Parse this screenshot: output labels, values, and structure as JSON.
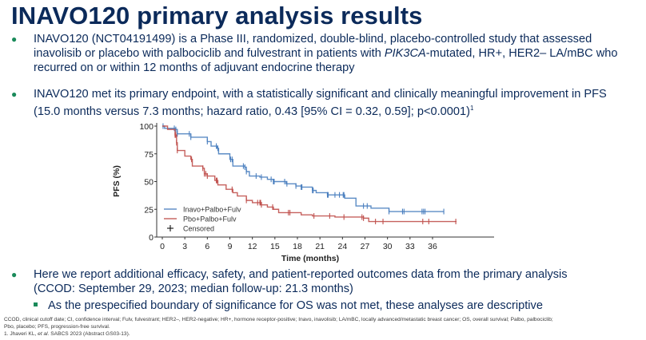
{
  "slide": {
    "title": "INAVO120 primary analysis results",
    "bullets": [
      {
        "lines": [
          {
            "parts": [
              {
                "text": "INAVO120 (NCT04191499) is a Phase III, randomized, double-blind, placebo-controlled study that assessed"
              }
            ]
          },
          {
            "parts": [
              {
                "text": "inavolisib or placebo with palbociclib and fulvestrant in patients with "
              },
              {
                "text": "PIK3CA",
                "italic": true
              },
              {
                "text": "-mutated, HR+, HER2– LA/mBC who"
              }
            ]
          },
          {
            "parts": [
              {
                "text": "recurred on or within 12 months of adjuvant endocrine therapy"
              }
            ]
          }
        ]
      },
      {
        "lines": [
          {
            "parts": [
              {
                "text": "INAVO120 met its primary endpoint, with a statistically significant and clinically meaningful improvement in PFS"
              }
            ]
          },
          {
            "parts": [
              {
                "text": "(15.0 months versus 7.3 months; hazard ratio, 0.43 [95% CI = 0.32, 0.59]; p<0.0001)"
              },
              {
                "text": "1",
                "sup": true
              }
            ]
          }
        ]
      },
      {
        "lines": [
          {
            "parts": [
              {
                "text": "Here we report additional efficacy, safety, and patient-reported outcomes data from the primary analysis"
              }
            ]
          },
          {
            "parts": [
              {
                "text": "(CCOD: September 29, 2023; median follow-up: 21.3 months)"
              }
            ]
          }
        ]
      }
    ],
    "sub_bullet": "As the prespecified boundary of significance for OS was not met, these analyses are descriptive",
    "footnotes": [
      "CCOD, clinical cutoff date; CI, confidence interval; Fulv, fulvestrant;  HER2–, HER2-negative; HR+, hormone receptor-positive; Inavo, inavolisib; LA/mBC, locally advanced/metastatic breast cancer; OS, overall survival; Palbo, palbociclib;",
      "Pbo, placebo; PFS, progression-free survival.",
      "1. Jhaveri KL, et al. SABCS 2023 (Abstract GS03-13)."
    ],
    "colors": {
      "title": "#0b2a5a",
      "bullet_marker": "#1a8a5a",
      "inavo": "#4a7fbf",
      "pbo": "#c0504d"
    }
  },
  "chart_data": {
    "type": "line",
    "subtype": "kaplan-meier step",
    "title": "",
    "xlabel": "Time (months)",
    "ylabel": "PFS (%)",
    "xlim": [
      -1.5,
      43
    ],
    "ylim": [
      0,
      100
    ],
    "xticks": [
      0,
      3,
      6,
      9,
      12,
      15,
      18,
      21,
      24,
      27,
      30,
      33,
      36
    ],
    "yticks": [
      0,
      25,
      50,
      75,
      100
    ],
    "grid": false,
    "legend": {
      "placement": "bottom-left",
      "entries": [
        "Inavo+Palbo+Fulv",
        "Pbo+Palbo+Fulv",
        "Censored"
      ]
    },
    "series": [
      {
        "name": "Inavo+Palbo+Fulv",
        "color": "#4a7fbf",
        "steps": [
          [
            0,
            100
          ],
          [
            0.3,
            98
          ],
          [
            1.8,
            97
          ],
          [
            2.0,
            93
          ],
          [
            3.8,
            90
          ],
          [
            6.0,
            86
          ],
          [
            6.5,
            82
          ],
          [
            7.3,
            80
          ],
          [
            7.5,
            75
          ],
          [
            9.0,
            70
          ],
          [
            9.4,
            64
          ],
          [
            11.0,
            63
          ],
          [
            11.2,
            59
          ],
          [
            11.6,
            55
          ],
          [
            13.0,
            54
          ],
          [
            14.0,
            52
          ],
          [
            14.8,
            50
          ],
          [
            16.5,
            48
          ],
          [
            17.8,
            46
          ],
          [
            18.5,
            45
          ],
          [
            20.0,
            42
          ],
          [
            20.5,
            40
          ],
          [
            22.0,
            38
          ],
          [
            24.3,
            35
          ],
          [
            25.8,
            28
          ],
          [
            27.8,
            26
          ],
          [
            30.2,
            23
          ],
          [
            37.5,
            23
          ]
        ],
        "censored": [
          0.1,
          1.6,
          1.8,
          2.0,
          3.6,
          3.8,
          6.0,
          7.2,
          7.4,
          9.1,
          9.3,
          10.8,
          11.0,
          11.2,
          12.5,
          13.2,
          14.5,
          14.8,
          14.9,
          16.3,
          16.6,
          17.8,
          18.5,
          18.6,
          20.0,
          20.1,
          22.0,
          22.1,
          23.0,
          23.6,
          24.1,
          24.2,
          26.8,
          27.3,
          30.2,
          32.0,
          32.2,
          34.6,
          34.8,
          35.0,
          37.5
        ]
      },
      {
        "name": "Pbo+Palbo+Fulv",
        "color": "#c0504d",
        "steps": [
          [
            0,
            100
          ],
          [
            0.7,
            97
          ],
          [
            1.7,
            92
          ],
          [
            1.9,
            85
          ],
          [
            2.0,
            78
          ],
          [
            3.0,
            73
          ],
          [
            3.8,
            70
          ],
          [
            4.0,
            64
          ],
          [
            5.4,
            62
          ],
          [
            5.6,
            57
          ],
          [
            6.0,
            55
          ],
          [
            7.0,
            51
          ],
          [
            7.4,
            47
          ],
          [
            8.5,
            43
          ],
          [
            9.4,
            40
          ],
          [
            10.0,
            37
          ],
          [
            11.2,
            33
          ],
          [
            12.0,
            31
          ],
          [
            13.2,
            29
          ],
          [
            14.0,
            27
          ],
          [
            14.8,
            25
          ],
          [
            15.5,
            22
          ],
          [
            18.5,
            20
          ],
          [
            20.0,
            19
          ],
          [
            23.0,
            18
          ],
          [
            26.8,
            17
          ],
          [
            27.5,
            14
          ],
          [
            39.2,
            14
          ]
        ],
        "censored": [
          1.7,
          1.8,
          1.9,
          2.0,
          3.9,
          5.4,
          5.6,
          5.8,
          6.0,
          7.2,
          7.3,
          9.3,
          11.2,
          12.7,
          13.0,
          13.1,
          13.2,
          14.7,
          16.8,
          17.0,
          20.2,
          22.3,
          24.2,
          26.6,
          26.8,
          28.4,
          29.4,
          34.7,
          35.5,
          39.1
        ]
      }
    ]
  }
}
